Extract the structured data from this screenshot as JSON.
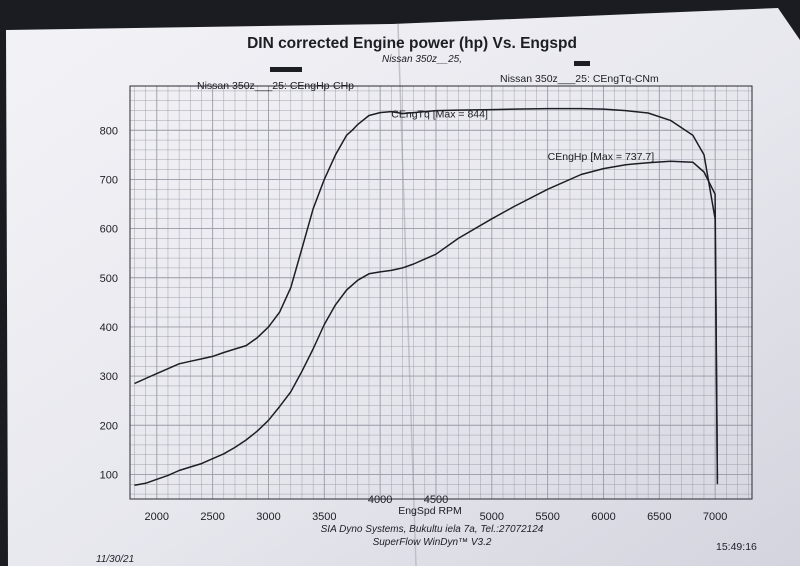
{
  "header": {
    "title": "DIN corrected Engine power (hp) Vs. Engspd",
    "subtitle": "Nissan 350z__25,"
  },
  "legend": {
    "left": "Nissan 350z___25: CEngHp-CHp",
    "right": "Nissan 350z___25: CEngTq-CNm"
  },
  "footer": {
    "company": "SIA Dyno Systems, Bukultu iela 7a, Tel.:27072124",
    "software": "SuperFlow WinDyn™ V3.2",
    "date": "11/30/21",
    "time": "15:49:16"
  },
  "colors": {
    "paper": "#e9e9ef",
    "grid": "#9a9aa6",
    "ink": "#1d1d24",
    "background": "#1b1c22"
  },
  "chart_data": {
    "type": "line",
    "title": "DIN corrected Engine power (hp) Vs. Engspd",
    "xlabel": "EngSpd RPM",
    "ylabel": "",
    "xlim": [
      1760,
      7330
    ],
    "ylim": [
      50,
      890
    ],
    "x_ticks": [
      2000,
      2500,
      3000,
      3500,
      4000,
      4500,
      5000,
      5500,
      6000,
      6500,
      7000
    ],
    "y_ticks": [
      100,
      200,
      300,
      400,
      500,
      600,
      700,
      800
    ],
    "grid": true,
    "series": [
      {
        "name": "CEngTq",
        "annotation": "CEngTq [Max = 844]",
        "annotation_at": [
          4100,
          826
        ],
        "x": [
          1800,
          1900,
          2000,
          2100,
          2200,
          2300,
          2400,
          2500,
          2600,
          2700,
          2800,
          2900,
          3000,
          3100,
          3200,
          3300,
          3400,
          3500,
          3600,
          3700,
          3750,
          3800,
          3900,
          4000,
          4100,
          4200,
          4300,
          4400,
          4500,
          4700,
          5000,
          5200,
          5500,
          5800,
          6000,
          6200,
          6400,
          6600,
          6800,
          6900,
          7000,
          7020
        ],
        "y": [
          285,
          295,
          305,
          315,
          325,
          330,
          335,
          340,
          348,
          355,
          362,
          378,
          400,
          430,
          480,
          560,
          640,
          700,
          750,
          790,
          800,
          812,
          830,
          836,
          838,
          834,
          836,
          838,
          840,
          841,
          842,
          843,
          844,
          844,
          843,
          840,
          835,
          820,
          790,
          750,
          620,
          90
        ]
      },
      {
        "name": "CEngHp",
        "annotation": "CEngHp [Max = 737.7]",
        "annotation_at": [
          5500,
          740
        ],
        "x": [
          1800,
          1900,
          2000,
          2100,
          2200,
          2300,
          2400,
          2500,
          2600,
          2700,
          2800,
          2900,
          3000,
          3100,
          3200,
          3300,
          3400,
          3500,
          3600,
          3700,
          3800,
          3900,
          4000,
          4100,
          4200,
          4300,
          4400,
          4500,
          4700,
          5000,
          5200,
          5500,
          5800,
          6000,
          6200,
          6400,
          6600,
          6800,
          6900,
          7000,
          7020
        ],
        "y": [
          78,
          82,
          90,
          98,
          108,
          115,
          122,
          132,
          142,
          155,
          170,
          188,
          210,
          238,
          268,
          310,
          355,
          405,
          445,
          475,
          495,
          508,
          512,
          515,
          520,
          528,
          538,
          548,
          580,
          620,
          645,
          680,
          710,
          722,
          730,
          734,
          737,
          735,
          715,
          670,
          80
        ]
      }
    ]
  }
}
